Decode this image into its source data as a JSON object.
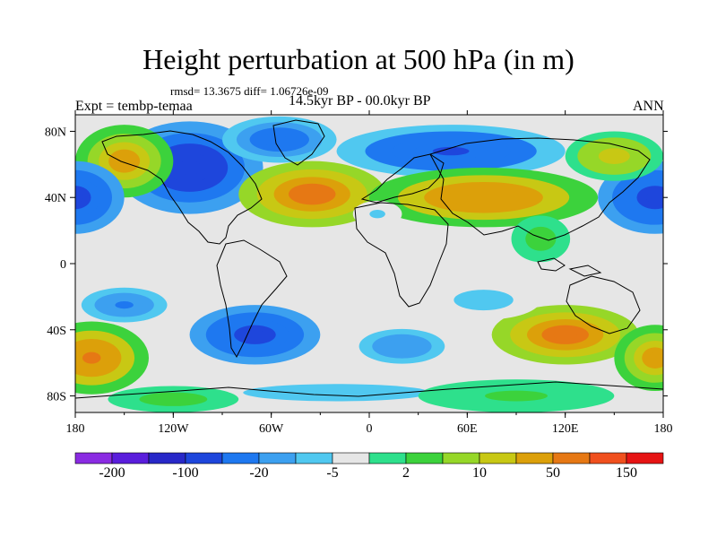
{
  "header": {
    "title": "Height perturbation at 500 hPa (in m)",
    "stats": "rmsd= 13.3675 diff= 1.06726e-09",
    "experiment": "Expt = tembp-temaa",
    "period": "14.5kyr BP - 00.0kyr BP",
    "season": "ANN"
  },
  "chart_data": {
    "type": "heatmap",
    "title": "Height perturbation at 500 hPa (in m)",
    "variable": "geopotential height perturbation at 500 hPa",
    "units": "m",
    "x_axis": {
      "range": [
        -180,
        180
      ],
      "ticks": [
        -180,
        -120,
        -60,
        0,
        60,
        120,
        180
      ],
      "tick_labels": [
        "180",
        "120W",
        "60W",
        "0",
        "60E",
        "120E",
        "180"
      ]
    },
    "y_axis": {
      "range": [
        -90,
        90
      ],
      "ticks": [
        80,
        40,
        0,
        -40,
        -80
      ],
      "tick_labels": [
        "80N",
        "40N",
        "0",
        "40S",
        "80S"
      ]
    },
    "colorbar": {
      "colors": [
        "#8a2be2",
        "#5a1edc",
        "#2828c8",
        "#1e46dc",
        "#1e78f0",
        "#3ca0f0",
        "#50c8f0",
        "#e6e6e6",
        "#2ee08c",
        "#3cd23c",
        "#96d728",
        "#c8c814",
        "#dca00a",
        "#e67814",
        "#f0501e",
        "#e61414"
      ],
      "labels": [
        "-200",
        "-100",
        "-20",
        "-5",
        "2",
        "10",
        "50",
        "150"
      ]
    },
    "features": [
      {
        "lon": -110,
        "lat": 58,
        "rx": 45,
        "ry": 28,
        "v": -95
      },
      {
        "lon": -55,
        "lat": 75,
        "rx": 35,
        "ry": 14,
        "v": -40
      },
      {
        "lon": -35,
        "lat": 42,
        "rx": 45,
        "ry": 20,
        "v": 60
      },
      {
        "lon": -150,
        "lat": 62,
        "rx": 30,
        "ry": 22,
        "v": 40
      },
      {
        "lon": 175,
        "lat": 40,
        "rx": 35,
        "ry": 22,
        "v": -60
      },
      {
        "lon": -180,
        "lat": 40,
        "rx": 30,
        "ry": 22,
        "v": -60
      },
      {
        "lon": 50,
        "lat": 68,
        "rx": 70,
        "ry": 16,
        "v": -50
      },
      {
        "lon": 70,
        "lat": 40,
        "rx": 70,
        "ry": 18,
        "v": 45
      },
      {
        "lon": 150,
        "lat": 65,
        "rx": 30,
        "ry": 15,
        "v": 25
      },
      {
        "lon": 5,
        "lat": 30,
        "rx": 15,
        "ry": 8,
        "v": -6
      },
      {
        "lon": 105,
        "lat": 15,
        "rx": 18,
        "ry": 14,
        "v": 8
      },
      {
        "lon": -140,
        "lat": -14,
        "rx": 25,
        "ry": 5,
        "v": -5
      },
      {
        "lon": -150,
        "lat": -25,
        "rx": 35,
        "ry": 14,
        "v": -20
      },
      {
        "lon": -70,
        "lat": -43,
        "rx": 40,
        "ry": 18,
        "v": -60
      },
      {
        "lon": 20,
        "lat": -50,
        "rx": 35,
        "ry": 14,
        "v": -15
      },
      {
        "lon": 120,
        "lat": -43,
        "rx": 45,
        "ry": 18,
        "v": 60
      },
      {
        "lon": 70,
        "lat": -22,
        "rx": 35,
        "ry": 12,
        "v": -8
      },
      {
        "lon": -170,
        "lat": -57,
        "rx": 35,
        "ry": 22,
        "v": 50
      },
      {
        "lon": 175,
        "lat": -57,
        "rx": 25,
        "ry": 20,
        "v": 40
      },
      {
        "lon": -20,
        "lat": -78,
        "rx": 110,
        "ry": 10,
        "v": -8
      },
      {
        "lon": 90,
        "lat": -80,
        "rx": 60,
        "ry": 10,
        "v": 6
      },
      {
        "lon": -120,
        "lat": -82,
        "rx": 40,
        "ry": 8,
        "v": 8
      }
    ]
  }
}
